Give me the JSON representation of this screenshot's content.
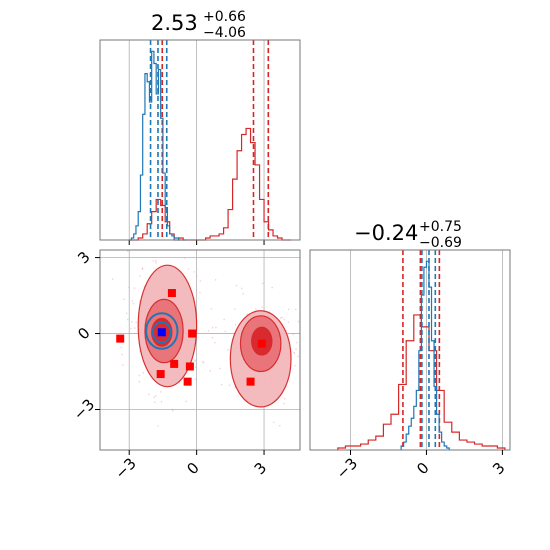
{
  "colors": {
    "red": "#d62728",
    "blue": "#1f77b4",
    "marker_red": "#ff0000",
    "marker_blue": "#0000ff",
    "grid": "#b0b0b0",
    "axes": "#777777"
  },
  "chart_data": [
    {
      "panel": "marginal-x",
      "type": "histogram",
      "title": {
        "median": "2.53",
        "plus": "+0.66",
        "minus": "−4.06"
      },
      "xlim": [
        -4.3,
        4.6
      ],
      "xticks": [
        -3,
        0,
        3
      ],
      "grid": true,
      "series": [
        {
          "color": "red",
          "bins": [
            -3.0,
            -2.8,
            -2.6,
            -2.4,
            -2.2,
            -2.0,
            -1.8,
            -1.6,
            -1.4,
            -1.2,
            -1.0,
            -0.8,
            -0.6,
            -0.4,
            -0.2,
            0.0,
            0.2,
            0.4,
            0.6,
            0.8,
            1.0,
            1.2,
            1.4,
            1.6,
            1.8,
            2.0,
            2.2,
            2.4,
            2.6,
            2.8,
            3.0,
            3.2,
            3.4,
            3.6,
            3.8,
            4.0,
            4.2
          ],
          "values": [
            0.0,
            0.0,
            0.01,
            0.03,
            0.08,
            0.14,
            0.2,
            0.17,
            0.09,
            0.03,
            0.0,
            0.01,
            0.0,
            0.0,
            0.0,
            0.0,
            0.0,
            0.01,
            0.02,
            0.02,
            0.03,
            0.06,
            0.15,
            0.3,
            0.44,
            0.52,
            0.55,
            0.48,
            0.37,
            0.2,
            0.09,
            0.05,
            0.02,
            0.01,
            0.0,
            0.0
          ],
          "quantiles": [
            -1.53,
            2.53,
            3.19
          ]
        },
        {
          "color": "blue",
          "bins": [
            -3.0,
            -2.9,
            -2.8,
            -2.7,
            -2.6,
            -2.5,
            -2.4,
            -2.3,
            -2.2,
            -2.1,
            -2.0,
            -1.9,
            -1.8,
            -1.7,
            -1.6,
            -1.5,
            -1.4,
            -1.3,
            -1.2,
            -1.1,
            -1.0,
            -0.9,
            -0.8,
            -0.7,
            -0.6,
            -0.5
          ],
          "values": [
            0.0,
            0.01,
            0.03,
            0.07,
            0.14,
            0.32,
            0.62,
            0.82,
            0.78,
            0.68,
            0.93,
            0.87,
            0.72,
            0.84,
            0.6,
            0.33,
            0.16,
            0.07,
            0.03,
            0.02,
            0.01,
            0.01,
            0.0,
            0.0,
            0.0
          ],
          "quantiles": [
            -2.05,
            -1.72,
            -1.33
          ]
        }
      ]
    },
    {
      "panel": "joint",
      "type": "scatter",
      "xlim": [
        -4.3,
        4.6
      ],
      "ylim": [
        -4.6,
        3.3
      ],
      "xticks": [
        -3,
        0,
        3
      ],
      "yticks": [
        -3,
        0,
        3
      ],
      "tick_labels": [
        "−3",
        "0",
        "3"
      ],
      "grid": true,
      "red_points": [
        [
          -3.4,
          -0.2
        ],
        [
          -1.1,
          1.6
        ],
        [
          -1.6,
          -1.6
        ],
        [
          -1.0,
          -1.2
        ],
        [
          -0.3,
          -1.3
        ],
        [
          -0.4,
          -1.9
        ],
        [
          -0.2,
          0.0
        ],
        [
          2.4,
          -1.9
        ],
        [
          2.9,
          -0.4
        ]
      ],
      "blue_point": [
        -1.55,
        0.05
      ],
      "red_contours": [
        {
          "level": "outer",
          "center": [
            -1.3,
            0.3
          ],
          "rx": 1.3,
          "ry": 2.4
        },
        {
          "level": "outer",
          "center": [
            2.85,
            -1.0
          ],
          "rx": 1.35,
          "ry": 1.9
        },
        {
          "level": "inner",
          "center": [
            -1.45,
            0.1
          ],
          "rx": 0.85,
          "ry": 1.25
        },
        {
          "level": "inner",
          "center": [
            2.85,
            -0.4
          ],
          "rx": 0.9,
          "ry": 1.1
        },
        {
          "level": "core",
          "center": [
            -1.55,
            0.05
          ],
          "rx": 0.45,
          "ry": 0.55
        },
        {
          "level": "core",
          "center": [
            2.9,
            -0.3
          ],
          "rx": 0.45,
          "ry": 0.55
        }
      ],
      "blue_contours": [
        {
          "center": [
            -1.55,
            0.1
          ],
          "rx": 0.7,
          "ry": 0.7
        },
        {
          "center": [
            -1.55,
            0.05
          ],
          "rx": 0.4,
          "ry": 0.4
        }
      ]
    },
    {
      "panel": "marginal-y",
      "type": "histogram",
      "title": {
        "median": "−0.24",
        "plus": "+0.75",
        "minus": "−0.69"
      },
      "xlim": [
        -4.6,
        3.3
      ],
      "xticks": [
        -3,
        0,
        3
      ],
      "grid": true,
      "series": [
        {
          "color": "red",
          "bins": [
            -3.5,
            -3.2,
            -2.9,
            -2.6,
            -2.3,
            -2.0,
            -1.7,
            -1.4,
            -1.1,
            -0.8,
            -0.5,
            -0.2,
            0.1,
            0.4,
            0.7,
            1.0,
            1.3,
            1.6,
            1.9,
            2.2,
            2.5,
            2.8,
            3.1
          ],
          "values": [
            0.01,
            0.02,
            0.02,
            0.03,
            0.05,
            0.07,
            0.13,
            0.18,
            0.33,
            0.55,
            0.68,
            0.62,
            0.5,
            0.3,
            0.14,
            0.09,
            0.05,
            0.04,
            0.03,
            0.02,
            0.02,
            0.01
          ],
          "quantiles": [
            -0.93,
            -0.24,
            0.51
          ]
        },
        {
          "color": "blue",
          "bins": [
            -1.0,
            -0.9,
            -0.8,
            -0.7,
            -0.6,
            -0.5,
            -0.4,
            -0.3,
            -0.2,
            -0.1,
            0.0,
            0.1,
            0.2,
            0.3,
            0.4,
            0.5,
            0.6,
            0.7,
            0.8,
            0.9
          ],
          "values": [
            0.02,
            0.04,
            0.08,
            0.12,
            0.16,
            0.22,
            0.3,
            0.5,
            0.78,
            0.92,
            0.95,
            0.82,
            0.55,
            0.32,
            0.18,
            0.09,
            0.04,
            0.02,
            0.01
          ],
          "quantiles": [
            -0.18,
            0.1,
            0.35
          ]
        }
      ]
    }
  ]
}
